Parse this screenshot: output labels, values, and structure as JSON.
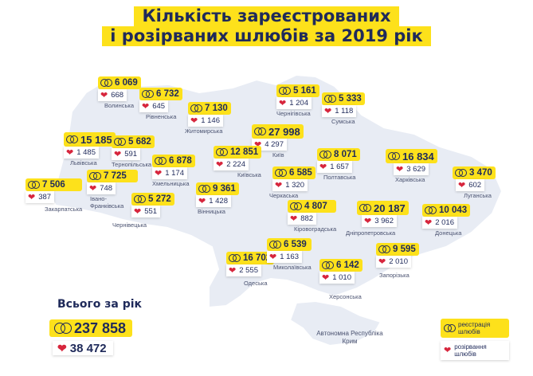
{
  "title_line1": "Кількість зареєстрованих",
  "title_line2": "і розірваних шлюбів за 2019 рік",
  "colors": {
    "accent": "#fde11b",
    "text": "#1f2a5a",
    "map": "#e8ecf4",
    "heart": "#d7263d"
  },
  "icons": {
    "marriage": "wedding-rings-icon",
    "divorce": "broken-heart-icon"
  },
  "regions": [
    {
      "name": "Волинська",
      "married": "6 069",
      "divorced": "668"
    },
    {
      "name": "Рівненська",
      "married": "6 732",
      "divorced": "645"
    },
    {
      "name": "Житомирська",
      "married": "7 130",
      "divorced": "1 146"
    },
    {
      "name": "Чернігівська",
      "married": "5 161",
      "divorced": "1 204"
    },
    {
      "name": "Сумська",
      "married": "5 333",
      "divorced": "1 118"
    },
    {
      "name": "Київ",
      "married": "27 998",
      "divorced": "4 297"
    },
    {
      "name": "Львівська",
      "married": "15 185",
      "divorced": "1 485"
    },
    {
      "name": "Тернопільська",
      "married": "5 682",
      "divorced": "591"
    },
    {
      "name": "Хмельницька",
      "married": "6 878",
      "divorced": "1 174"
    },
    {
      "name": "Київська",
      "married": "12 851",
      "divorced": "2 224"
    },
    {
      "name": "Полтавська",
      "married": "8 071",
      "divorced": "1 657"
    },
    {
      "name": "Харківська",
      "married": "16 834",
      "divorced": "3 629"
    },
    {
      "name": "Закарпатська",
      "married": "7 506",
      "divorced": "387"
    },
    {
      "name": "Івано-Франківська",
      "married": "7 725",
      "divorced": "748"
    },
    {
      "name": "Чернівецька",
      "married": "5 272",
      "divorced": "551"
    },
    {
      "name": "Вінницька",
      "married": "9 361",
      "divorced": "1 428"
    },
    {
      "name": "Черкаська",
      "married": "6 585",
      "divorced": "1 320"
    },
    {
      "name": "Луганська",
      "married": "3 470",
      "divorced": "602"
    },
    {
      "name": "Кіровоградська",
      "married": "4 807",
      "divorced": "882"
    },
    {
      "name": "Дніпропетровська",
      "married": "20 187",
      "divorced": "3 962"
    },
    {
      "name": "Донецька",
      "married": "10 043",
      "divorced": "2 016"
    },
    {
      "name": "Одеська",
      "married": "16 702",
      "divorced": "2 555"
    },
    {
      "name": "Миколаївська",
      "married": "6 539",
      "divorced": "1 163"
    },
    {
      "name": "Запорізька",
      "married": "9 595",
      "divorced": "2 010"
    },
    {
      "name": "Херсонська",
      "married": "6 142",
      "divorced": "1 010"
    },
    {
      "name": "Автономна Республіка Крим",
      "married": "",
      "divorced": ""
    }
  ],
  "totals": {
    "label": "Всього за рік",
    "married": "237 858",
    "divorced": "38 472"
  },
  "legend": {
    "marriage": "реєстрація шлюбів",
    "divorce": "розірвання шлюбів"
  }
}
